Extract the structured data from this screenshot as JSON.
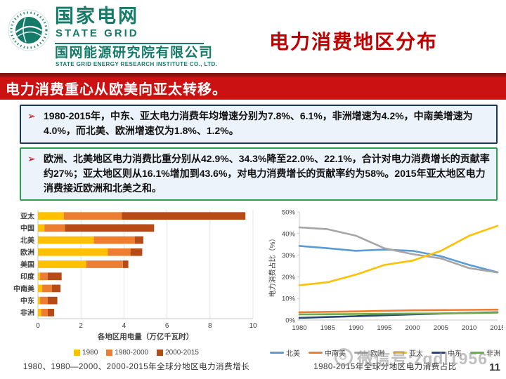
{
  "header": {
    "brand_cn": "国家电网",
    "brand_en": "STATE GRID",
    "institute_cn": "国网能源研究院有限公司",
    "institute_en": "STATE GRID ENERGY RESEARCH INSTITUTE CO., LTD.",
    "slide_title": "电力消费地区分布"
  },
  "banner": {
    "text": "电力消费重心从欧美向亚太转移。"
  },
  "bullets": [
    {
      "marker": "➢",
      "text": "1980-2015年，中东、亚太电力消费年均增速分别为7.8%、6.1%，非洲增速为4.2%，中南美增速为4.0%，而北美、欧洲增速仅为1.8%、1.2%。"
    },
    {
      "marker": "➢",
      "text": "欧洲、北美地区电力消费比重分别从42.9%、34.3%降至22.0%、22.1%，合计对电力消费增长的贡献率约27%；亚太地区则从16.1%增加到43.6%，对电力消费增长的贡献率约为58%。2015年亚太地区电力消费接近欧洲和北美之和。"
    }
  ],
  "chart_data": [
    {
      "type": "bar",
      "orientation": "horizontal",
      "stacked": true,
      "categories": [
        "亚太",
        "中国",
        "北美",
        "欧洲",
        "美国",
        "印度",
        "中南美",
        "中东",
        "非洲"
      ],
      "series": [
        {
          "name": "1980",
          "color": "#FFC000",
          "values": [
            1.2,
            0.3,
            2.6,
            3.25,
            2.25,
            0.1,
            0.2,
            0.1,
            0.15
          ]
        },
        {
          "name": "1980-2000",
          "color": "#ED7D31",
          "values": [
            2.7,
            0.95,
            1.9,
            1.05,
            1.7,
            0.35,
            0.45,
            0.35,
            0.3
          ]
        },
        {
          "name": "2000-2015",
          "color": "#B84A16",
          "values": [
            5.75,
            4.15,
            0.4,
            0.55,
            0.25,
            0.65,
            0.4,
            0.45,
            0.3
          ]
        }
      ],
      "xlabel": "各地区用电量（万亿千瓦时）",
      "ylabel": "",
      "xlim": [
        0,
        10
      ],
      "xticks": [
        0,
        2,
        4,
        6,
        8,
        10
      ],
      "grid": "vertical-light",
      "legend_position": "bottom",
      "caption": "1980、1980—2000、2000-2015年全球分地区电力消费增长"
    },
    {
      "type": "line",
      "x": [
        1980,
        1985,
        1990,
        1995,
        2000,
        2005,
        2010,
        2015
      ],
      "series": [
        {
          "name": "北美",
          "color": "#5B9BD5",
          "values": [
            34.3,
            33.2,
            32.0,
            32.6,
            32.0,
            29.5,
            25.5,
            22.1
          ]
        },
        {
          "name": "中南美",
          "color": "#ED7D31",
          "values": [
            3.6,
            3.8,
            4.0,
            4.3,
            4.5,
            4.6,
            4.7,
            4.8
          ]
        },
        {
          "name": "欧洲",
          "color": "#A6A6A6",
          "values": [
            42.9,
            42.0,
            39.0,
            33.2,
            30.5,
            28.5,
            24.0,
            22.0
          ]
        },
        {
          "name": "亚太",
          "color": "#FFC000",
          "values": [
            16.1,
            17.5,
            21.0,
            25.5,
            27.5,
            32.0,
            39.0,
            43.6
          ]
        },
        {
          "name": "中东",
          "color": "#264478",
          "values": [
            1.0,
            1.4,
            1.8,
            2.2,
            2.6,
            3.0,
            3.3,
            3.6
          ]
        },
        {
          "name": "非洲",
          "color": "#70AD47",
          "values": [
            2.6,
            2.7,
            2.8,
            2.9,
            3.0,
            3.1,
            3.2,
            3.4
          ]
        }
      ],
      "xlabel": "",
      "ylabel": "电力消费占比（%）",
      "ylim": [
        0,
        50
      ],
      "yticks": [
        0,
        10,
        20,
        30,
        40,
        50
      ],
      "grid": "off",
      "legend_position": "bottom",
      "caption": "1980-2015年全球分地区电力消费占比"
    }
  ],
  "footer": {
    "watermark": "微信号:zgdl1956",
    "page_number": "11"
  },
  "colors": {
    "banner_red": "#CB1111",
    "banner_red_dark": "#8E0F0F",
    "title_red": "#C00000",
    "brand_teal": "#157A68",
    "box1_border": "#17375E",
    "box2_border": "#2E9E50",
    "box_background": "#EDF3FA"
  }
}
